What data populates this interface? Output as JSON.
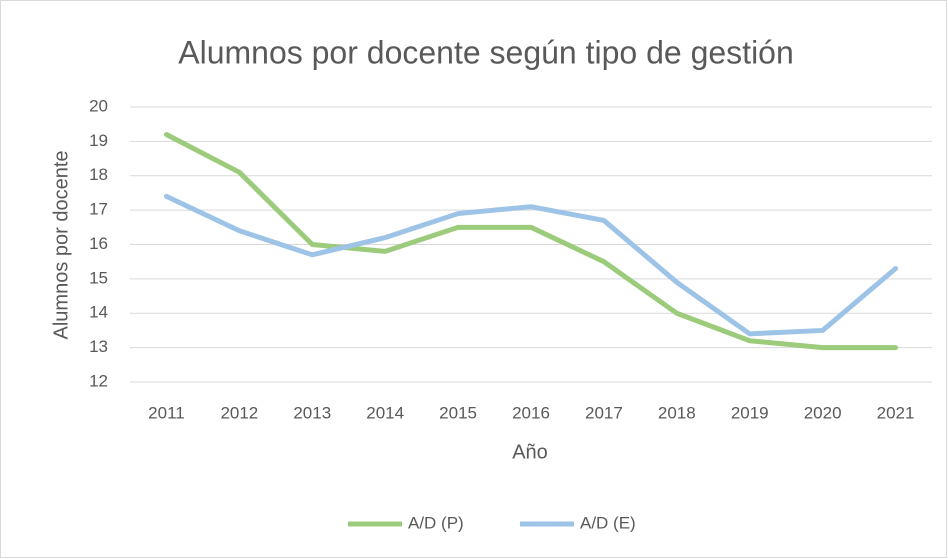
{
  "chart_data": {
    "type": "line",
    "title": "Alumnos por docente según tipo de gestión",
    "x_label": "Año",
    "y_label": "Alumnos por docente",
    "categories": [
      "2011",
      "2012",
      "2013",
      "2014",
      "2015",
      "2016",
      "2017",
      "2018",
      "2019",
      "2020",
      "2021"
    ],
    "series": [
      {
        "name": "A/D (P)",
        "color": "#9ccb7c",
        "values": [
          19.2,
          18.1,
          16.0,
          15.8,
          16.5,
          16.5,
          15.5,
          14.0,
          13.2,
          13.0,
          13.0
        ]
      },
      {
        "name": "A/D (E)",
        "color": "#9dc3e6",
        "values": [
          17.4,
          16.4,
          15.7,
          16.2,
          16.9,
          17.1,
          16.7,
          14.9,
          13.4,
          13.5,
          15.3
        ]
      }
    ],
    "ylim": [
      12,
      20
    ],
    "yticks": [
      12,
      13,
      14,
      15,
      16,
      17,
      18,
      19,
      20
    ],
    "grid": true,
    "legend": "bottom"
  }
}
